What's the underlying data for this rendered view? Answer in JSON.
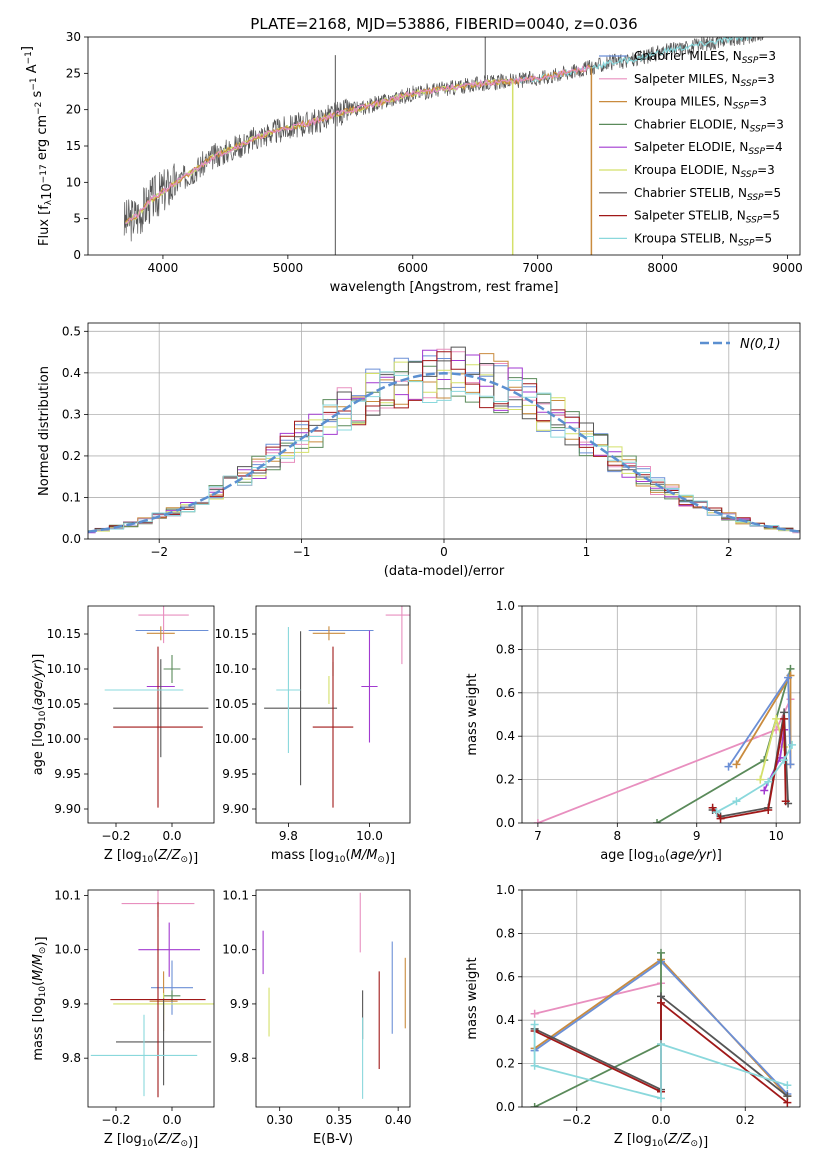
{
  "colors": {
    "Chabrier MILES": "#6b8fd6",
    "Salpeter MILES": "#e88fbf",
    "Kroupa MILES": "#c98b3e",
    "Chabrier ELODIE": "#5a8a5a",
    "Salpeter ELODIE": "#a23ad0",
    "Kroupa ELODIE": "#d4e06a",
    "Chabrier STELIB": "#555555",
    "Salpeter STELIB": "#a01818",
    "Kroupa STELIB": "#8ad8dc",
    "normal": "#5b8fd0"
  },
  "chart_data": [
    {
      "id": "spectrum",
      "type": "line",
      "title": "PLATE=2168, MJD=53886, FIBERID=0040, z=0.036",
      "xlabel": "wavelength [Angstrom, rest frame]",
      "ylabel": "Flux [f$_\\lambda$10$^{-17}$ erg cm$^{-2}$ s$^{-1}$ A$^{-1}$]",
      "xlim": [
        3400,
        9100
      ],
      "ylim": [
        0,
        30
      ],
      "xticks": [
        4000,
        5000,
        6000,
        7000,
        8000,
        9000
      ],
      "yticks": [
        0,
        5,
        10,
        15,
        20,
        25,
        30
      ],
      "grid": false,
      "legend_position": "top-right",
      "legend": [
        {
          "series": "Chabrier MILES",
          "label": "Chabrier MILES, N",
          "sub": "SSP",
          "suffix": "=3"
        },
        {
          "series": "Salpeter MILES",
          "label": "Salpeter MILES, N",
          "sub": "SSP",
          "suffix": "=3"
        },
        {
          "series": "Kroupa MILES",
          "label": "Kroupa MILES, N",
          "sub": "SSP",
          "suffix": "=3"
        },
        {
          "series": "Chabrier ELODIE",
          "label": "Chabrier ELODIE, N",
          "sub": "SSP",
          "suffix": "=3"
        },
        {
          "series": "Salpeter ELODIE",
          "label": "Salpeter ELODIE, N",
          "sub": "SSP",
          "suffix": "=4"
        },
        {
          "series": "Kroupa ELODIE",
          "label": "Kroupa ELODIE, N",
          "sub": "SSP",
          "suffix": "=3"
        },
        {
          "series": "Chabrier STELIB",
          "label": "Chabrier STELIB, N",
          "sub": "SSP",
          "suffix": "=5"
        },
        {
          "series": "Salpeter STELIB",
          "label": "Salpeter STELIB, N",
          "sub": "SSP",
          "suffix": "=5"
        },
        {
          "series": "Kroupa STELIB",
          "label": "Kroupa STELIB, N",
          "sub": "SSP",
          "suffix": "=5"
        }
      ],
      "continuum": [
        [
          3700,
          4.5
        ],
        [
          3800,
          5.5
        ],
        [
          3900,
          7.5
        ],
        [
          4000,
          8.8
        ],
        [
          4200,
          11.0
        ],
        [
          4400,
          13.5
        ],
        [
          4600,
          15.0
        ],
        [
          4800,
          16.5
        ],
        [
          5000,
          17.5
        ],
        [
          5200,
          18.3
        ],
        [
          5400,
          19.5
        ],
        [
          5600,
          20.3
        ],
        [
          5800,
          21.3
        ],
        [
          6000,
          22.2
        ],
        [
          6200,
          22.8
        ],
        [
          6400,
          23.2
        ],
        [
          6600,
          23.7
        ],
        [
          6800,
          23.9
        ],
        [
          7000,
          24.3
        ],
        [
          7200,
          25.0
        ],
        [
          7400,
          25.7
        ],
        [
          7600,
          26.5
        ],
        [
          7800,
          27.0
        ],
        [
          8000,
          28.0
        ],
        [
          8200,
          28.6
        ],
        [
          8400,
          29.3
        ],
        [
          8600,
          29.8
        ],
        [
          8800,
          30.5
        ]
      ],
      "model_ranges": [
        {
          "series": "Kroupa STELIB",
          "from": 3700,
          "to": 8800
        },
        {
          "series": "Kroupa ELODIE",
          "from": 3700,
          "to": 6800
        },
        {
          "series": "Chabrier MILES",
          "from": 3700,
          "to": 7400
        },
        {
          "series": "Kroupa MILES",
          "from": 3700,
          "to": 7430
        },
        {
          "series": "Salpeter MILES",
          "from": 3700,
          "to": 7430
        }
      ],
      "dropouts": [
        {
          "series": "Kroupa ELODIE",
          "x": 6800
        },
        {
          "series": "Kroupa MILES",
          "x": 7430
        }
      ],
      "spikes": [
        {
          "series": "Chabrier STELIB",
          "x": 5380,
          "y": 27.5,
          "down": 0
        },
        {
          "series": "Chabrier STELIB",
          "x": 6580,
          "y": 30.0,
          "down": 24.5
        }
      ]
    },
    {
      "id": "residuals",
      "type": "step-histogram",
      "xlabel": "(data-model)/error",
      "ylabel": "Normed distribution",
      "xlim": [
        -2.5,
        2.5
      ],
      "ylim": [
        0,
        0.52
      ],
      "xticks": [
        -2,
        -1,
        0,
        1,
        2
      ],
      "yticks": [
        0.0,
        0.1,
        0.2,
        0.3,
        0.4,
        0.5
      ],
      "grid": true,
      "legend_position": "top-right",
      "reference_label": "N(0,1)",
      "reference_mean": 0,
      "reference_sigma": 1,
      "bin_width": 0.1,
      "series": [
        {
          "name": "Chabrier MILES",
          "seed": 1
        },
        {
          "name": "Salpeter MILES",
          "seed": 2
        },
        {
          "name": "Kroupa MILES",
          "seed": 3
        },
        {
          "name": "Chabrier ELODIE",
          "seed": 4
        },
        {
          "name": "Salpeter ELODIE",
          "seed": 5
        },
        {
          "name": "Kroupa ELODIE",
          "seed": 6
        },
        {
          "name": "Chabrier STELIB",
          "seed": 7
        },
        {
          "name": "Salpeter STELIB",
          "seed": 8
        },
        {
          "name": "Kroupa STELIB",
          "seed": 9
        }
      ]
    },
    {
      "id": "age-vs-Z",
      "type": "errorbar",
      "xlabel": "Z [log10(Z/Z⊙)]",
      "ylabel": "age [log10(age/yr)]",
      "xlim": [
        -0.3,
        0.15
      ],
      "ylim": [
        9.88,
        10.19
      ],
      "xticks": [
        -0.2,
        0.0
      ],
      "yticks": [
        9.9,
        9.95,
        10.0,
        10.05,
        10.1,
        10.15
      ],
      "points": [
        {
          "series": "Chabrier MILES",
          "x": 0.0,
          "y": 10.155,
          "xerr": 0.13,
          "yerr": 0.0
        },
        {
          "series": "Salpeter MILES",
          "x": -0.03,
          "y": 10.177,
          "xerr": 0.09,
          "yerr": 0.04
        },
        {
          "series": "Kroupa MILES",
          "x": -0.04,
          "y": 10.151,
          "xerr": 0.05,
          "yerr": 0.01
        },
        {
          "series": "Chabrier ELODIE",
          "x": 0.0,
          "y": 10.1,
          "xerr": 0.03,
          "yerr": 0.02
        },
        {
          "series": "Salpeter ELODIE",
          "x": -0.04,
          "y": 10.075,
          "xerr": 0.05,
          "yerr": 0.0
        },
        {
          "series": "Kroupa ELODIE",
          "x": -0.1,
          "y": 10.07,
          "xerr": 0.14,
          "yerr": 0.0
        },
        {
          "series": "Chabrier STELIB",
          "x": -0.04,
          "y": 10.044,
          "xerr": 0.17,
          "yerr": 0.07
        },
        {
          "series": "Salpeter STELIB",
          "x": -0.05,
          "y": 10.017,
          "xerr": 0.16,
          "yerr": 0.115
        },
        {
          "series": "Kroupa STELIB",
          "x": -0.1,
          "y": 10.07,
          "xerr": 0.14,
          "yerr": 0.0
        }
      ]
    },
    {
      "id": "age-vs-mass",
      "type": "errorbar",
      "xlabel": "mass [log10(M/M⊙)]",
      "ylabel": "",
      "xlim": [
        9.72,
        10.1
      ],
      "ylim": [
        9.88,
        10.19
      ],
      "xticks": [
        9.8,
        10.0
      ],
      "yticks": [
        9.9,
        9.95,
        10.0,
        10.05,
        10.1,
        10.15
      ],
      "points": [
        {
          "series": "Chabrier MILES",
          "x": 9.93,
          "y": 10.155,
          "xerr": 0.08,
          "yerr": 0.0
        },
        {
          "series": "Salpeter MILES",
          "x": 10.08,
          "y": 10.177,
          "xerr": 0.04,
          "yerr": 0.07
        },
        {
          "series": "Kroupa MILES",
          "x": 9.9,
          "y": 10.151,
          "xerr": 0.04,
          "yerr": 0.01
        },
        {
          "series": "Chabrier ELODIE",
          "x": 9.91,
          "y": 10.1,
          "xerr": 0.0,
          "yerr": 0.01
        },
        {
          "series": "Salpeter ELODIE",
          "x": 10.0,
          "y": 10.075,
          "xerr": 0.02,
          "yerr": 0.08
        },
        {
          "series": "Kroupa ELODIE",
          "x": 9.9,
          "y": 10.07,
          "xerr": 0.0,
          "yerr": 0.02
        },
        {
          "series": "Chabrier STELIB",
          "x": 9.83,
          "y": 10.044,
          "xerr": 0.09,
          "yerr": 0.11
        },
        {
          "series": "Salpeter STELIB",
          "x": 9.91,
          "y": 10.017,
          "xerr": 0.05,
          "yerr": 0.115
        },
        {
          "series": "Kroupa STELIB",
          "x": 9.8,
          "y": 10.07,
          "xerr": 0.03,
          "yerr": 0.09
        }
      ]
    },
    {
      "id": "weight-vs-age",
      "type": "line",
      "xlabel": "age [log10(age/yr)]",
      "ylabel": "mass weight",
      "xlim": [
        6.8,
        10.3
      ],
      "ylim": [
        0,
        1
      ],
      "xticks": [
        7,
        8,
        9,
        10
      ],
      "yticks": [
        0.0,
        0.2,
        0.4,
        0.6,
        0.8,
        1.0
      ],
      "grid": true,
      "series": [
        {
          "name": "Salpeter MILES",
          "x": [
            7.0,
            10.0,
            10.18
          ],
          "y": [
            0.0,
            0.43,
            0.57
          ]
        },
        {
          "name": "Chabrier ELODIE",
          "x": [
            8.5,
            9.85,
            10.18
          ],
          "y": [
            0.0,
            0.29,
            0.71
          ]
        },
        {
          "name": "Kroupa MILES",
          "x": [
            9.5,
            10.18,
            10.18
          ],
          "y": [
            0.27,
            0.68,
            0.27
          ]
        },
        {
          "name": "Chabrier MILES",
          "x": [
            9.4,
            10.15,
            10.18
          ],
          "y": [
            0.26,
            0.67,
            0.27
          ]
        },
        {
          "name": "Kroupa ELODIE",
          "x": [
            9.8,
            10.0,
            10.1
          ],
          "y": [
            0.2,
            0.48,
            0.35
          ]
        },
        {
          "name": "Salpeter ELODIE",
          "x": [
            9.85,
            10.05,
            10.1
          ],
          "y": [
            0.15,
            0.3,
            0.43
          ]
        },
        {
          "name": "Chabrier STELIB",
          "x": [
            9.2,
            9.3,
            9.9,
            10.1,
            10.15
          ],
          "y": [
            0.06,
            0.03,
            0.07,
            0.51,
            0.09
          ]
        },
        {
          "name": "Salpeter STELIB",
          "x": [
            9.2,
            9.3,
            9.9,
            10.1,
            10.12
          ],
          "y": [
            0.07,
            0.02,
            0.06,
            0.48,
            0.1
          ]
        },
        {
          "name": "Kroupa STELIB",
          "x": [
            9.25,
            9.5,
            9.9,
            10.1,
            10.2
          ],
          "y": [
            0.05,
            0.1,
            0.19,
            0.29,
            0.36
          ]
        }
      ]
    },
    {
      "id": "mass-vs-Z",
      "type": "errorbar",
      "xlabel": "Z [log10(Z/Z⊙)]",
      "ylabel": "mass [log10(M/M⊙)]",
      "xlim": [
        -0.3,
        0.15
      ],
      "ylim": [
        9.71,
        10.11
      ],
      "xticks": [
        -0.2,
        0.0
      ],
      "yticks": [
        9.8,
        9.9,
        10.0,
        10.1
      ],
      "points": [
        {
          "series": "Chabrier MILES",
          "x": 0.0,
          "y": 9.93,
          "xerr": 0.075,
          "yerr": 0.05
        },
        {
          "series": "Salpeter MILES",
          "x": -0.05,
          "y": 10.085,
          "xerr": 0.13,
          "yerr": 0.025
        },
        {
          "series": "Kroupa MILES",
          "x": -0.03,
          "y": 9.905,
          "xerr": 0.05,
          "yerr": 0.055
        },
        {
          "series": "Chabrier ELODIE",
          "x": 0.0,
          "y": 9.915,
          "xerr": 0.03,
          "yerr": 0.01
        },
        {
          "series": "Salpeter ELODIE",
          "x": -0.01,
          "y": 10.0,
          "xerr": 0.11,
          "yerr": 0.05
        },
        {
          "series": "Kroupa ELODIE",
          "x": -0.03,
          "y": 9.9,
          "xerr": 0.18,
          "yerr": 0.02
        },
        {
          "series": "Chabrier STELIB",
          "x": -0.03,
          "y": 9.83,
          "xerr": 0.17,
          "yerr": 0.08
        },
        {
          "series": "Salpeter STELIB",
          "x": -0.05,
          "y": 9.908,
          "xerr": 0.17,
          "yerr": 0.18
        },
        {
          "series": "Kroupa STELIB",
          "x": -0.1,
          "y": 9.805,
          "xerr": 0.19,
          "yerr": 0.075
        }
      ]
    },
    {
      "id": "mass-vs-EBV",
      "type": "errorbar",
      "xlabel": "E(B-V)",
      "ylabel": "",
      "xlim": [
        0.28,
        0.41
      ],
      "ylim": [
        9.71,
        10.11
      ],
      "xticks": [
        0.3,
        0.35,
        0.4
      ],
      "yticks": [
        9.8,
        9.9,
        10.0,
        10.1
      ],
      "points": [
        {
          "series": "Chabrier MILES",
          "x": 0.395,
          "y": 9.93,
          "xerr": 0.0,
          "yerr": 0.085
        },
        {
          "series": "Salpeter MILES",
          "x": 0.368,
          "y": 10.05,
          "xerr": 0.0,
          "yerr": 0.055
        },
        {
          "series": "Kroupa MILES",
          "x": 0.406,
          "y": 9.92,
          "xerr": 0.0,
          "yerr": 0.065
        },
        {
          "series": "Salpeter ELODIE",
          "x": 0.286,
          "y": 9.995,
          "xerr": 0.0,
          "yerr": 0.04
        },
        {
          "series": "Kroupa ELODIE",
          "x": 0.291,
          "y": 9.885,
          "xerr": 0.0,
          "yerr": 0.045
        },
        {
          "series": "Chabrier STELIB",
          "x": 0.37,
          "y": 9.88,
          "xerr": 0.0,
          "yerr": 0.045
        },
        {
          "series": "Salpeter STELIB",
          "x": 0.384,
          "y": 9.87,
          "xerr": 0.0,
          "yerr": 0.09
        },
        {
          "series": "Kroupa STELIB",
          "x": 0.37,
          "y": 9.8,
          "xerr": 0.0,
          "yerr": 0.075
        }
      ]
    },
    {
      "id": "weight-vs-Z",
      "type": "line",
      "xlabel": "Z [log10(Z/Z⊙)]",
      "ylabel": "mass weight",
      "xlim": [
        -0.33,
        0.33
      ],
      "ylim": [
        0,
        1
      ],
      "xticks": [
        -0.2,
        0.0,
        0.2
      ],
      "yticks": [
        0.0,
        0.2,
        0.4,
        0.6,
        0.8,
        1.0
      ],
      "grid": true,
      "series": [
        {
          "name": "Salpeter MILES",
          "x": [
            -0.3,
            0.0
          ],
          "y": [
            0.43,
            0.57
          ]
        },
        {
          "name": "Kroupa MILES",
          "x": [
            -0.3,
            0.0,
            0.3
          ],
          "y": [
            0.27,
            0.68,
            0.05
          ]
        },
        {
          "name": "Chabrier MILES",
          "x": [
            -0.3,
            0.0,
            0.3
          ],
          "y": [
            0.26,
            0.67,
            0.06
          ]
        },
        {
          "name": "Chabrier ELODIE",
          "x": [
            -0.3,
            0.0,
            0.0
          ],
          "y": [
            0.0,
            0.29,
            0.71
          ]
        },
        {
          "name": "Chabrier STELIB",
          "x": [
            -0.3,
            0.0,
            0.0,
            0.3
          ],
          "y": [
            0.36,
            0.08,
            0.51,
            0.05
          ]
        },
        {
          "name": "Salpeter STELIB",
          "x": [
            -0.3,
            0.0,
            0.0,
            0.3
          ],
          "y": [
            0.35,
            0.07,
            0.48,
            0.02
          ]
        },
        {
          "name": "Kroupa STELIB",
          "x": [
            -0.3,
            -0.3,
            0.0,
            0.0,
            0.3
          ],
          "y": [
            0.38,
            0.19,
            0.04,
            0.29,
            0.1
          ]
        }
      ]
    }
  ]
}
